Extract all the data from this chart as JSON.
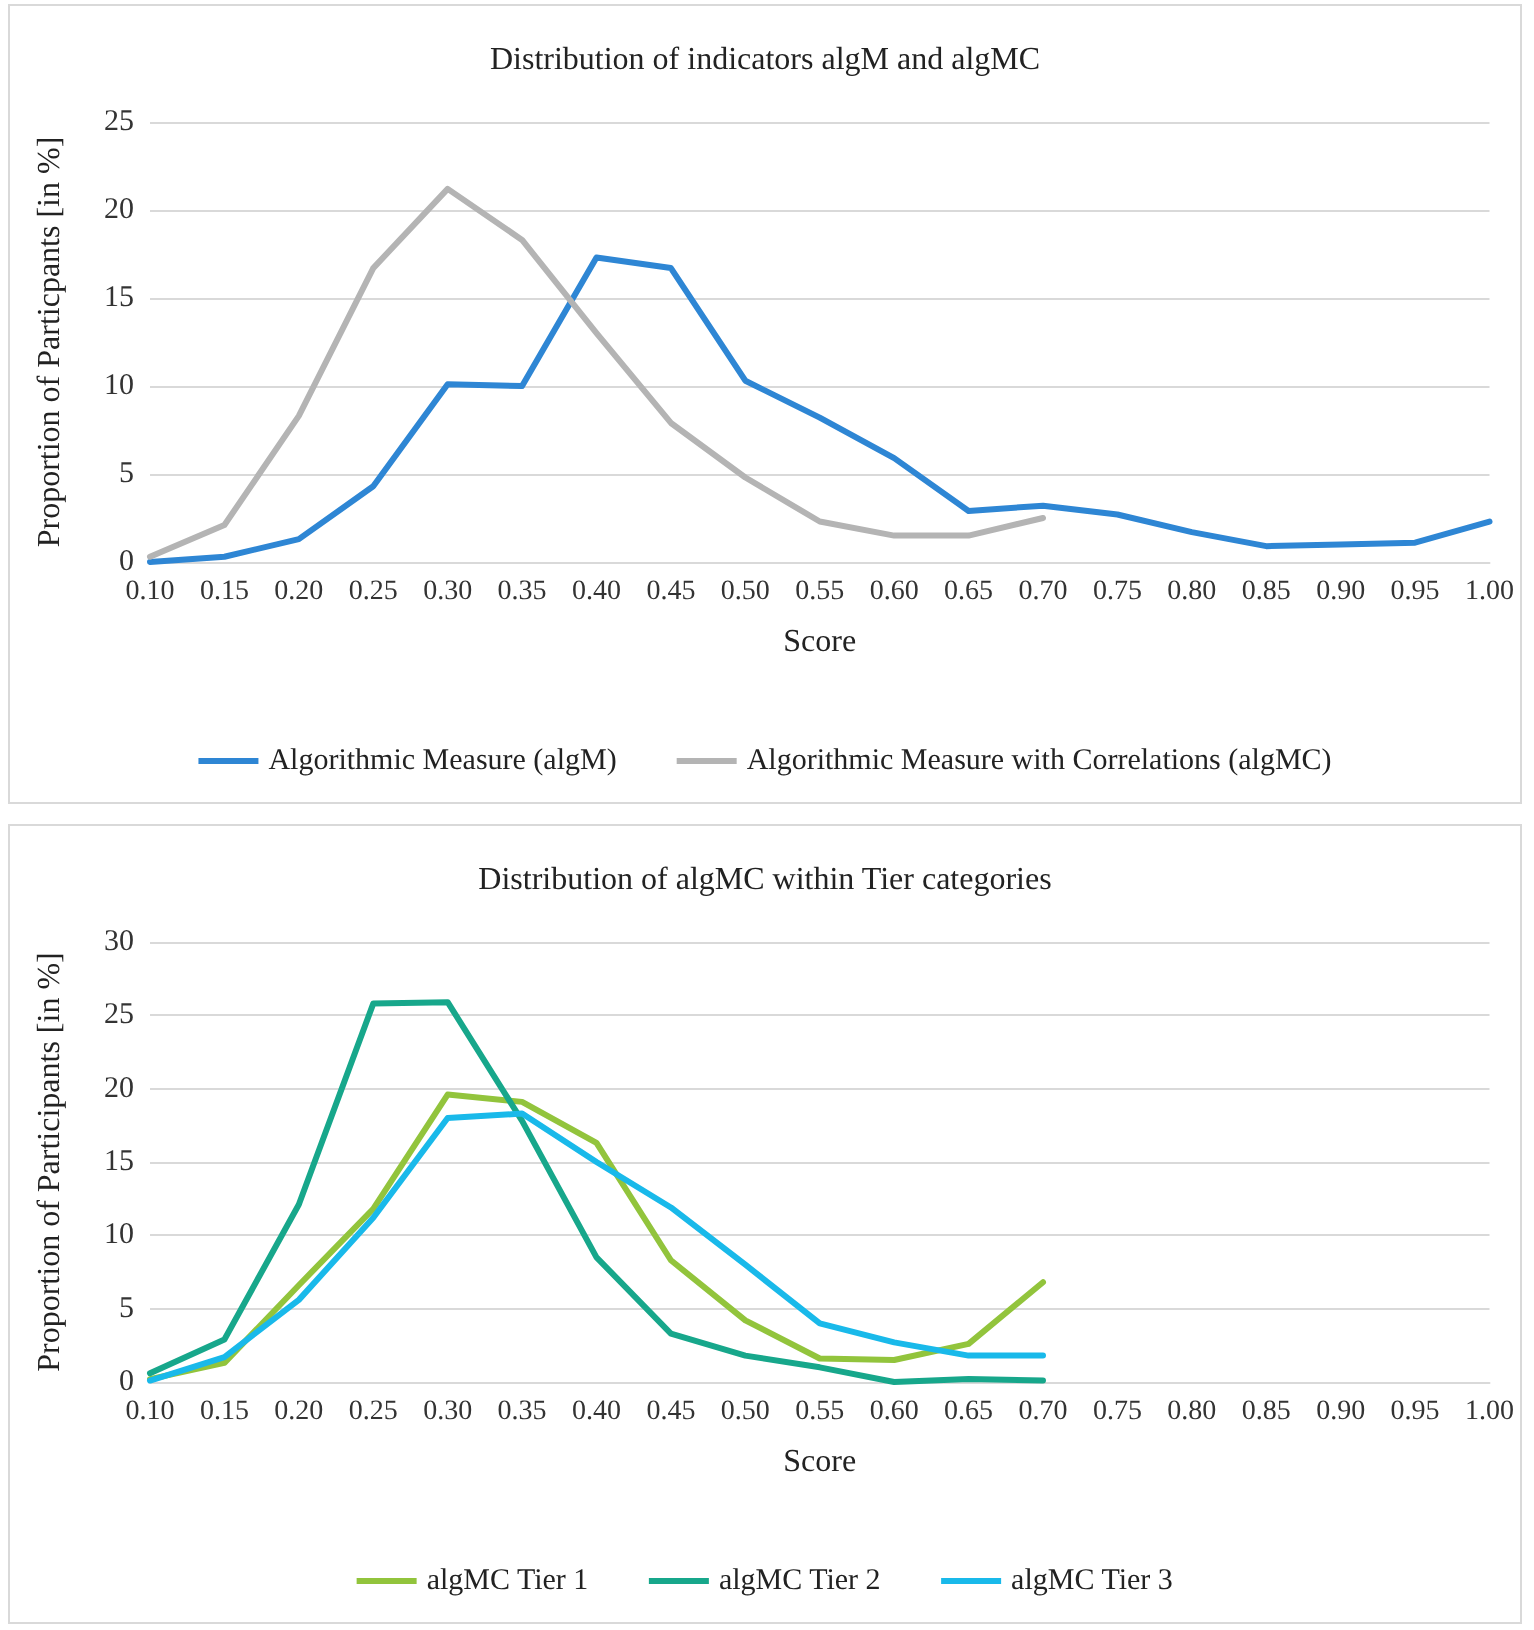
{
  "chart_data": [
    {
      "type": "line",
      "title": "Distribution of indicators algM and algMC",
      "xlabel": "Score",
      "ylabel": "Proportion of Particpants [in %]",
      "categories": [
        "0.10",
        "0.15",
        "0.20",
        "0.25",
        "0.30",
        "0.35",
        "0.40",
        "0.45",
        "0.50",
        "0.55",
        "0.60",
        "0.65",
        "0.70",
        "0.75",
        "0.80",
        "0.85",
        "0.90",
        "0.95",
        "1.00"
      ],
      "series": [
        {
          "name": "Algorithmic Measure (algM)",
          "color": "#2e86d4",
          "values": [
            0,
            0.3,
            1.3,
            4.3,
            10.1,
            10,
            17.3,
            16.7,
            10.3,
            8.2,
            5.9,
            2.9,
            3.2,
            2.7,
            1.7,
            0.9,
            1.0,
            1.1,
            2.3
          ]
        },
        {
          "name": "Algorithmic Measure with Correlations (algMC)",
          "color": "#b4b4b4",
          "values": [
            0.3,
            2.1,
            8.3,
            16.7,
            21.2,
            18.3,
            13,
            7.9,
            4.8,
            2.3,
            1.5,
            1.5,
            2.5,
            null,
            null,
            null,
            null,
            null,
            null
          ]
        }
      ],
      "ylim": [
        0,
        25
      ],
      "yticks": [
        0,
        5,
        10,
        15,
        20,
        25
      ],
      "grid": "y",
      "legend": "bottom",
      "marker": "none",
      "line_style": "solid"
    },
    {
      "type": "line",
      "title": "Distribution of algMC within Tier categories",
      "xlabel": "Score",
      "ylabel": "Proportion of Participants [in %]",
      "categories": [
        "0.10",
        "0.15",
        "0.20",
        "0.25",
        "0.30",
        "0.35",
        "0.40",
        "0.45",
        "0.50",
        "0.55",
        "0.60",
        "0.65",
        "0.70",
        "0.75",
        "0.80",
        "0.85",
        "0.90",
        "0.95",
        "1.00"
      ],
      "series": [
        {
          "name": "algMC Tier 1",
          "color": "#92c43c",
          "values": [
            0.2,
            1.3,
            6.6,
            11.8,
            19.6,
            19.1,
            16.3,
            8.3,
            4.2,
            1.6,
            1.5,
            2.6,
            6.8,
            null,
            null,
            null,
            null,
            null,
            null
          ]
        },
        {
          "name": "algMC Tier 2",
          "color": "#17a78b",
          "values": [
            0.6,
            2.9,
            12.1,
            25.8,
            25.9,
            17.8,
            8.5,
            3.3,
            1.8,
            1.0,
            0,
            0.2,
            0.1,
            null,
            null,
            null,
            null,
            null,
            null
          ]
        },
        {
          "name": "algMC Tier 3",
          "color": "#19b9ea",
          "values": [
            0.1,
            1.7,
            5.6,
            11.2,
            18.0,
            18.3,
            15.0,
            11.9,
            8.0,
            4.0,
            2.7,
            1.8,
            1.8,
            null,
            null,
            null,
            null,
            null,
            null
          ]
        }
      ],
      "ylim": [
        0,
        30
      ],
      "yticks": [
        0,
        5,
        10,
        15,
        20,
        25,
        30
      ],
      "grid": "y",
      "legend": "bottom",
      "marker": "none",
      "line_style": "solid"
    }
  ]
}
